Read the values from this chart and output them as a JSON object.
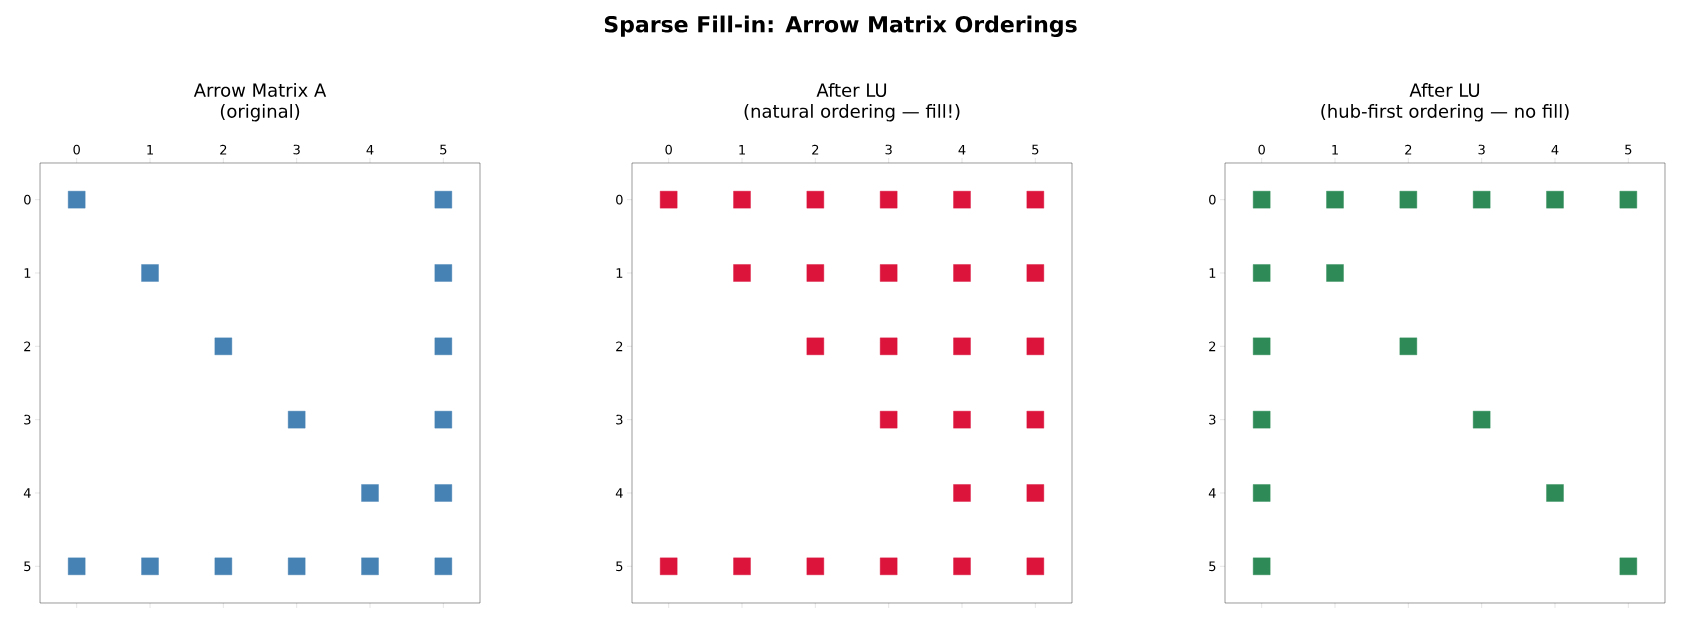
{
  "chart_data": [
    {
      "type": "scatter",
      "title": "Arrow Matrix A",
      "subtitle": "(original)",
      "annotations": [
        "Sparse Fill-in: Arrow Matrix Orderings"
      ],
      "marker": "square",
      "series": [
        {
          "color": "#4682b4",
          "x": [
            0,
            5,
            1,
            5,
            2,
            5,
            3,
            5,
            4,
            5,
            0,
            1,
            2,
            3,
            4,
            5
          ],
          "values": [
            0,
            0,
            1,
            1,
            2,
            2,
            3,
            3,
            4,
            4,
            5,
            5,
            5,
            5,
            5,
            5
          ]
        }
      ],
      "xlim": [
        -0.5,
        5.5
      ],
      "ylim": [
        5.5,
        -0.5
      ],
      "xticks": [
        0,
        1,
        2,
        3,
        4,
        5
      ],
      "yticks": [
        0,
        1,
        2,
        3,
        4,
        5
      ]
    },
    {
      "type": "scatter",
      "title": "After LU",
      "subtitle": "(natural ordering — fill!)",
      "marker": "square",
      "series": [
        {
          "color": "#dc143c",
          "x": [
            0,
            1,
            2,
            3,
            4,
            5,
            1,
            2,
            3,
            4,
            5,
            2,
            3,
            4,
            5,
            3,
            4,
            5,
            4,
            5,
            0,
            1,
            2,
            3,
            4,
            5
          ],
          "values": [
            0,
            0,
            0,
            0,
            0,
            0,
            1,
            1,
            1,
            1,
            1,
            2,
            2,
            2,
            2,
            3,
            3,
            3,
            4,
            4,
            5,
            5,
            5,
            5,
            5,
            5
          ]
        }
      ],
      "xlim": [
        -0.5,
        5.5
      ],
      "ylim": [
        5.5,
        -0.5
      ],
      "xticks": [
        0,
        1,
        2,
        3,
        4,
        5
      ],
      "yticks": [
        0,
        1,
        2,
        3,
        4,
        5
      ]
    },
    {
      "type": "scatter",
      "title": "After LU",
      "subtitle": "(hub-first ordering — no fill)",
      "marker": "square",
      "series": [
        {
          "color": "#2e8b57",
          "x": [
            0,
            1,
            2,
            3,
            4,
            5,
            0,
            1,
            0,
            2,
            0,
            3,
            0,
            4,
            0,
            5
          ],
          "values": [
            0,
            0,
            0,
            0,
            0,
            0,
            1,
            1,
            2,
            2,
            3,
            3,
            4,
            4,
            5,
            5
          ]
        }
      ],
      "xlim": [
        -0.5,
        5.5
      ],
      "ylim": [
        5.5,
        -0.5
      ],
      "xticks": [
        0,
        1,
        2,
        3,
        4,
        5
      ],
      "yticks": [
        0,
        1,
        2,
        3,
        4,
        5
      ]
    }
  ]
}
